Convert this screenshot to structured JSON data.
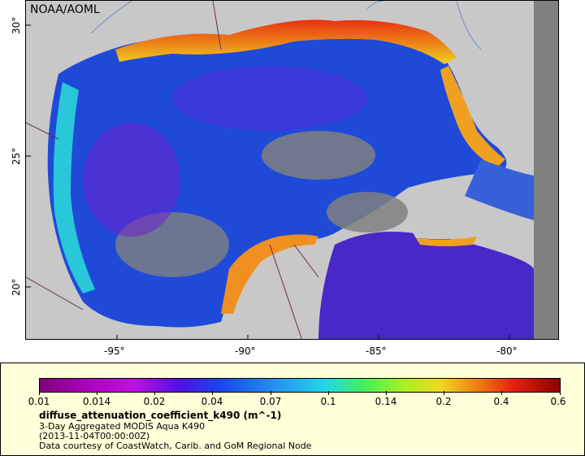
{
  "map": {
    "credit": "NOAA/AOML",
    "lat_ticks": [
      "30°",
      "25°",
      "20°"
    ],
    "lon_ticks": [
      "-95°",
      "-90°",
      "-85°",
      "-80°"
    ],
    "land_color": "#c8c8c8",
    "nodata_color": "#808080",
    "water_low_color": "#1a3cf0",
    "coastal_high_color": "#e83010"
  },
  "legend": {
    "colorbar_labels": [
      "0.01",
      "0.014",
      "0.02",
      "0.04",
      "0.07",
      "0.1",
      "0.14",
      "0.2",
      "0.4",
      "0.6"
    ],
    "title": "diffuse_attenuation_coefficient_k490 (m^-1)",
    "line1": "3-Day Aggregated MODIS Aqua K490",
    "line2": "(2013-11-04T00:00:00Z)",
    "line3": "Data courtesy of CoastWatch, Carib. and GoM Regional Node"
  }
}
